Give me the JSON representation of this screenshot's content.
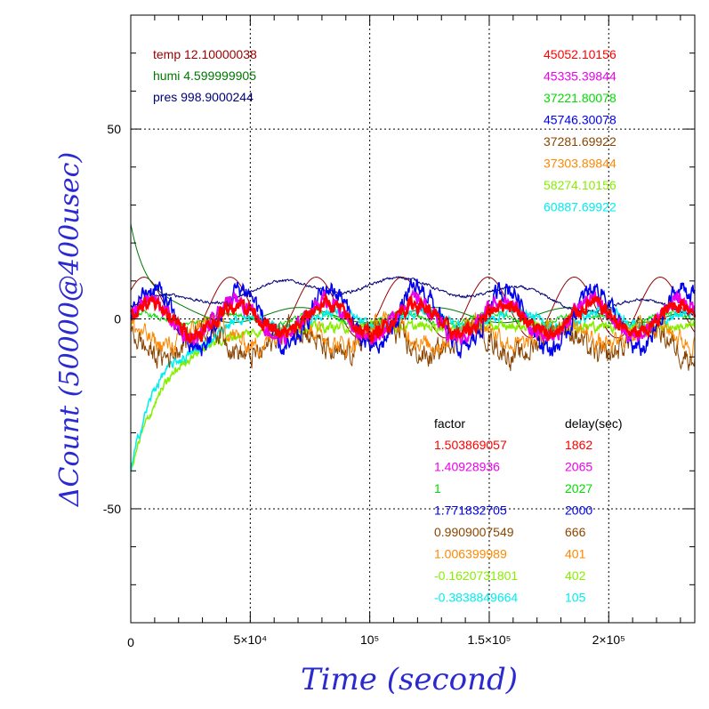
{
  "chart_data": {
    "type": "line",
    "xlabel": "Time (second)",
    "ylabel": "ΔCount (50000@400usec)",
    "xlim": [
      0,
      236000
    ],
    "ylim": [
      -80,
      80
    ],
    "x_ticks": [
      {
        "value": 0,
        "label": "0"
      },
      {
        "value": 50000,
        "label": "5×10⁴"
      },
      {
        "value": 100000,
        "label": "10⁵"
      },
      {
        "value": 150000,
        "label": "1.5×10⁵"
      },
      {
        "value": 200000,
        "label": "2×10⁵"
      }
    ],
    "y_ticks": [
      {
        "value": -50,
        "label": "-50"
      },
      {
        "value": 0,
        "label": "0"
      },
      {
        "value": 50,
        "label": "50"
      }
    ],
    "grid": true,
    "env_legend": [
      {
        "label": "temp 12.10000038",
        "color": "#990000"
      },
      {
        "label": "humi 4.599999905",
        "color": "#007700"
      },
      {
        "label": "pres 998.9000244",
        "color": "#000077"
      }
    ],
    "series": [
      {
        "name": "45052.10156",
        "factor": "1.503869057",
        "delay": "1862",
        "color": "#ff0000"
      },
      {
        "name": "45335.39844",
        "factor": "1.40928936",
        "delay": "2065",
        "color": "#ee00ee"
      },
      {
        "name": "37221.80078",
        "factor": "1",
        "delay": "2027",
        "color": "#00dd00"
      },
      {
        "name": "45746.30078",
        "factor": "1.771832705",
        "delay": "2000",
        "color": "#0000ee"
      },
      {
        "name": "37281.69922",
        "factor": "0.9909007549",
        "delay": "666",
        "color": "#8b4500"
      },
      {
        "name": "37303.89844",
        "factor": "1.006399989",
        "delay": "401",
        "color": "#ff8800"
      },
      {
        "name": "58274.10156",
        "factor": "-0.1620731801",
        "delay": "402",
        "color": "#88ee00"
      },
      {
        "name": "60887.69922",
        "factor": "-0.3838849664",
        "delay": "105",
        "color": "#00eeee"
      }
    ],
    "table_headers": {
      "factor": "factor",
      "delay": "delay(sec)"
    }
  }
}
